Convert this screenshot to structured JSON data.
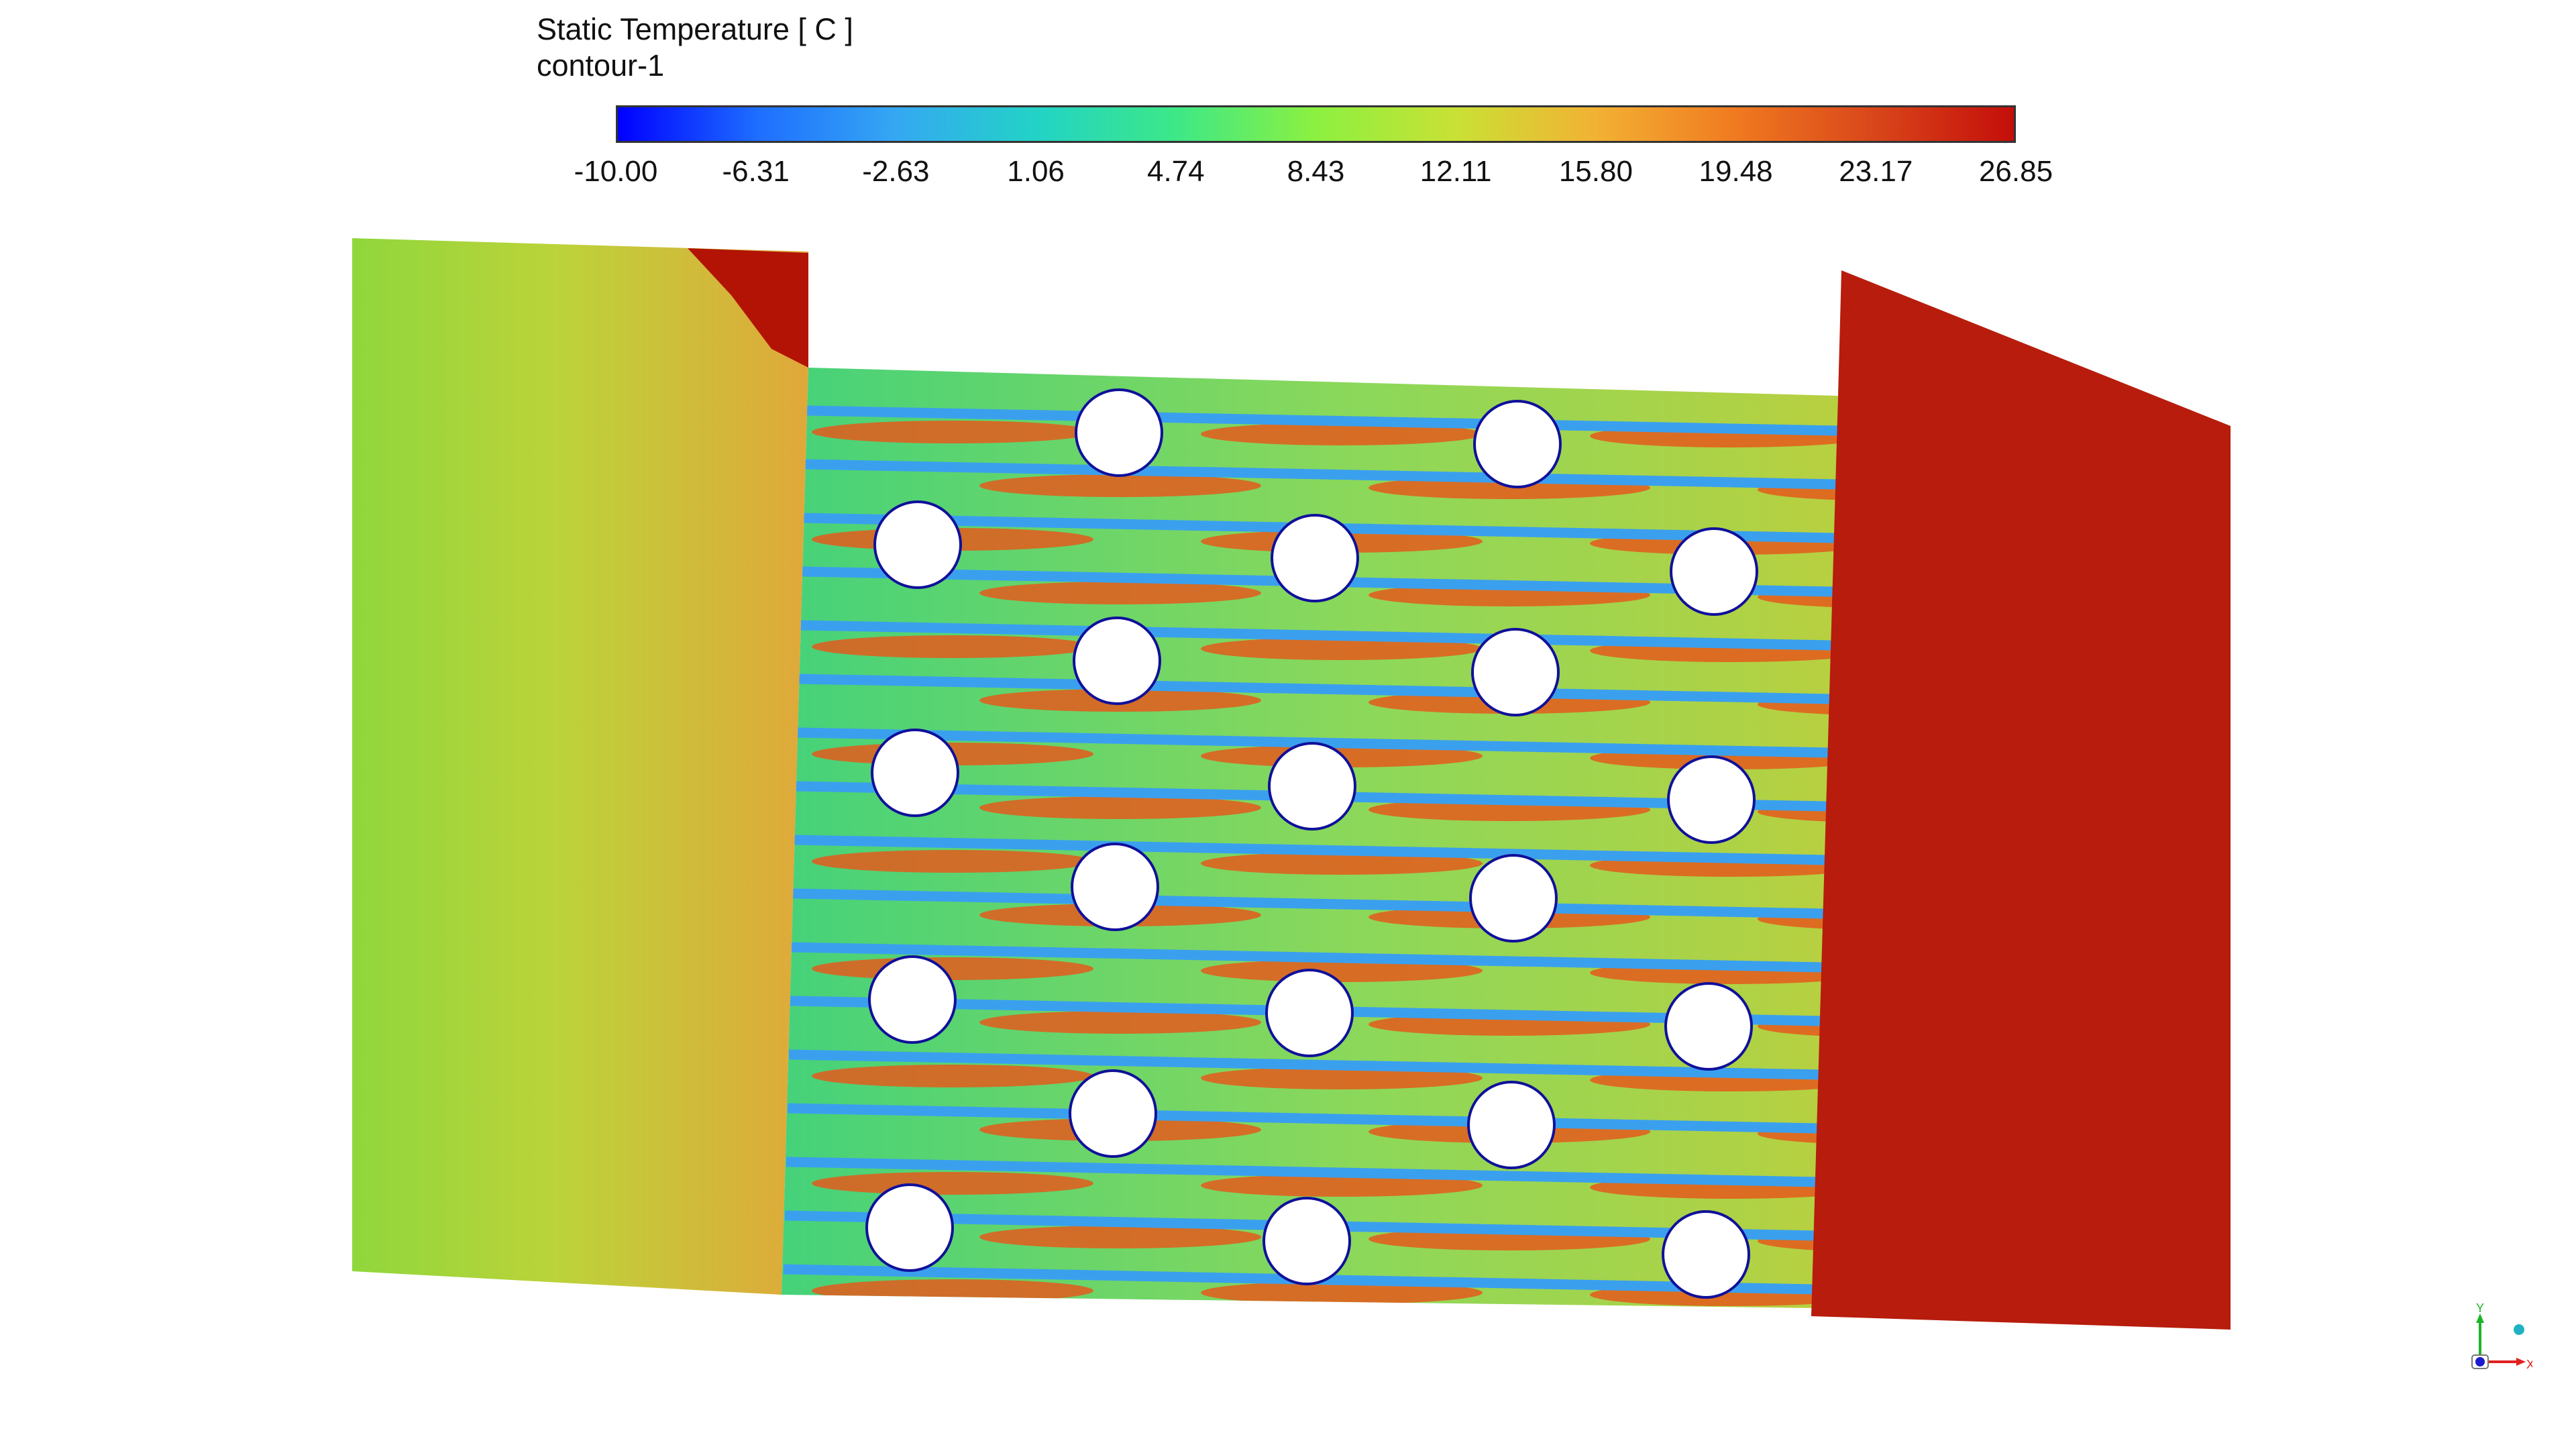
{
  "legend": {
    "title": "Static Temperature [ C ]",
    "subtitle": "contour-1",
    "min": -10.0,
    "max": 26.85,
    "ticks": [
      "-10.00",
      "-6.31",
      "-2.63",
      "1.06",
      "4.74",
      "8.43",
      "12.11",
      "15.80",
      "19.48",
      "23.17",
      "26.85"
    ],
    "colormap": [
      "#0000ff",
      "#1e6eff",
      "#35a8f2",
      "#22d3c6",
      "#3de887",
      "#8cf040",
      "#c9e135",
      "#f2b233",
      "#f07a20",
      "#d9461a",
      "#c40e0a"
    ]
  },
  "colors": {
    "hot_outlet": "#b71c0c",
    "hot_corner": "#b21305",
    "inlet_warm": "#e0a83a",
    "inlet_cool": "#8fd73c",
    "fin": "#3aa0ee",
    "fin_wake": "#22d3c6",
    "tube_fill": "#ffffff",
    "tube_outline": "#10109a",
    "flow_mid": "#45d27a",
    "hot_streak": "#e45a1c"
  },
  "axis_triad": {
    "x_label": "X",
    "y_label": "Y"
  }
}
